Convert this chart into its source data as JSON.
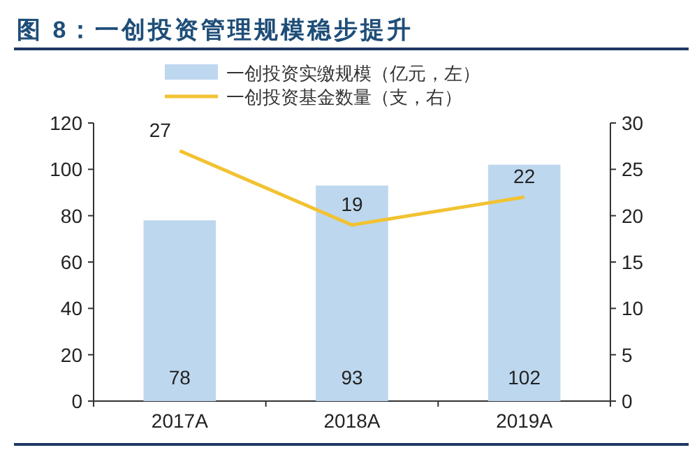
{
  "chart_data": {
    "type": "bar",
    "title": "图 8：一创投资管理规模稳步提升",
    "categories": [
      "2017A",
      "2018A",
      "2019A"
    ],
    "series": [
      {
        "name": "一创投资实缴规模（亿元，左）",
        "color": "#bdd7ee",
        "values": [
          78,
          93,
          102
        ]
      },
      {
        "name": "一创投资基金数量（支，右）",
        "type": "line",
        "axis": "y2",
        "color": "#f2c232",
        "values": [
          27,
          19,
          22
        ]
      }
    ],
    "ylim": [
      0,
      120
    ],
    "yticks": [
      0,
      20,
      40,
      60,
      80,
      100,
      120
    ],
    "y2lim": [
      0,
      30
    ],
    "y2ticks": [
      0,
      5,
      10,
      15,
      20,
      25,
      30
    ],
    "data_labels": true,
    "grid": false,
    "legend": "top",
    "marker": "none"
  }
}
